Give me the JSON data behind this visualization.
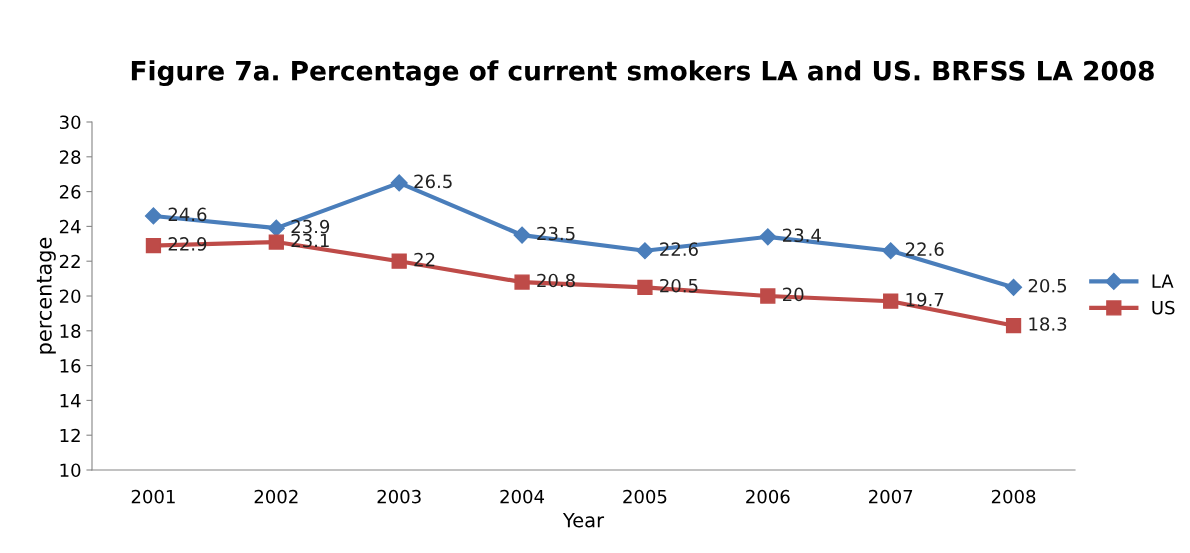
{
  "chart_data": {
    "type": "line",
    "title": "Figure 7a. Percentage of current smokers LA and US. BRFSS LA 2008",
    "xlabel": "Year",
    "ylabel": "percentage",
    "categories": [
      "2001",
      "2002",
      "2003",
      "2004",
      "2005",
      "2006",
      "2007",
      "2008"
    ],
    "series": [
      {
        "name": "LA",
        "color": "#4a7ebb",
        "marker": "diamond",
        "values": [
          24.6,
          23.9,
          26.5,
          23.5,
          22.6,
          23.4,
          22.6,
          20.5
        ]
      },
      {
        "name": "US",
        "color": "#be4b48",
        "marker": "square",
        "values": [
          22.9,
          23.1,
          22,
          20.8,
          20.5,
          20,
          19.7,
          18.3
        ]
      }
    ],
    "ylim": [
      10,
      30
    ],
    "yticks": [
      10,
      12,
      14,
      16,
      18,
      20,
      22,
      24,
      26,
      28,
      30
    ],
    "grid": false,
    "legend": "right",
    "data_labels": true,
    "line_style": "solid"
  }
}
